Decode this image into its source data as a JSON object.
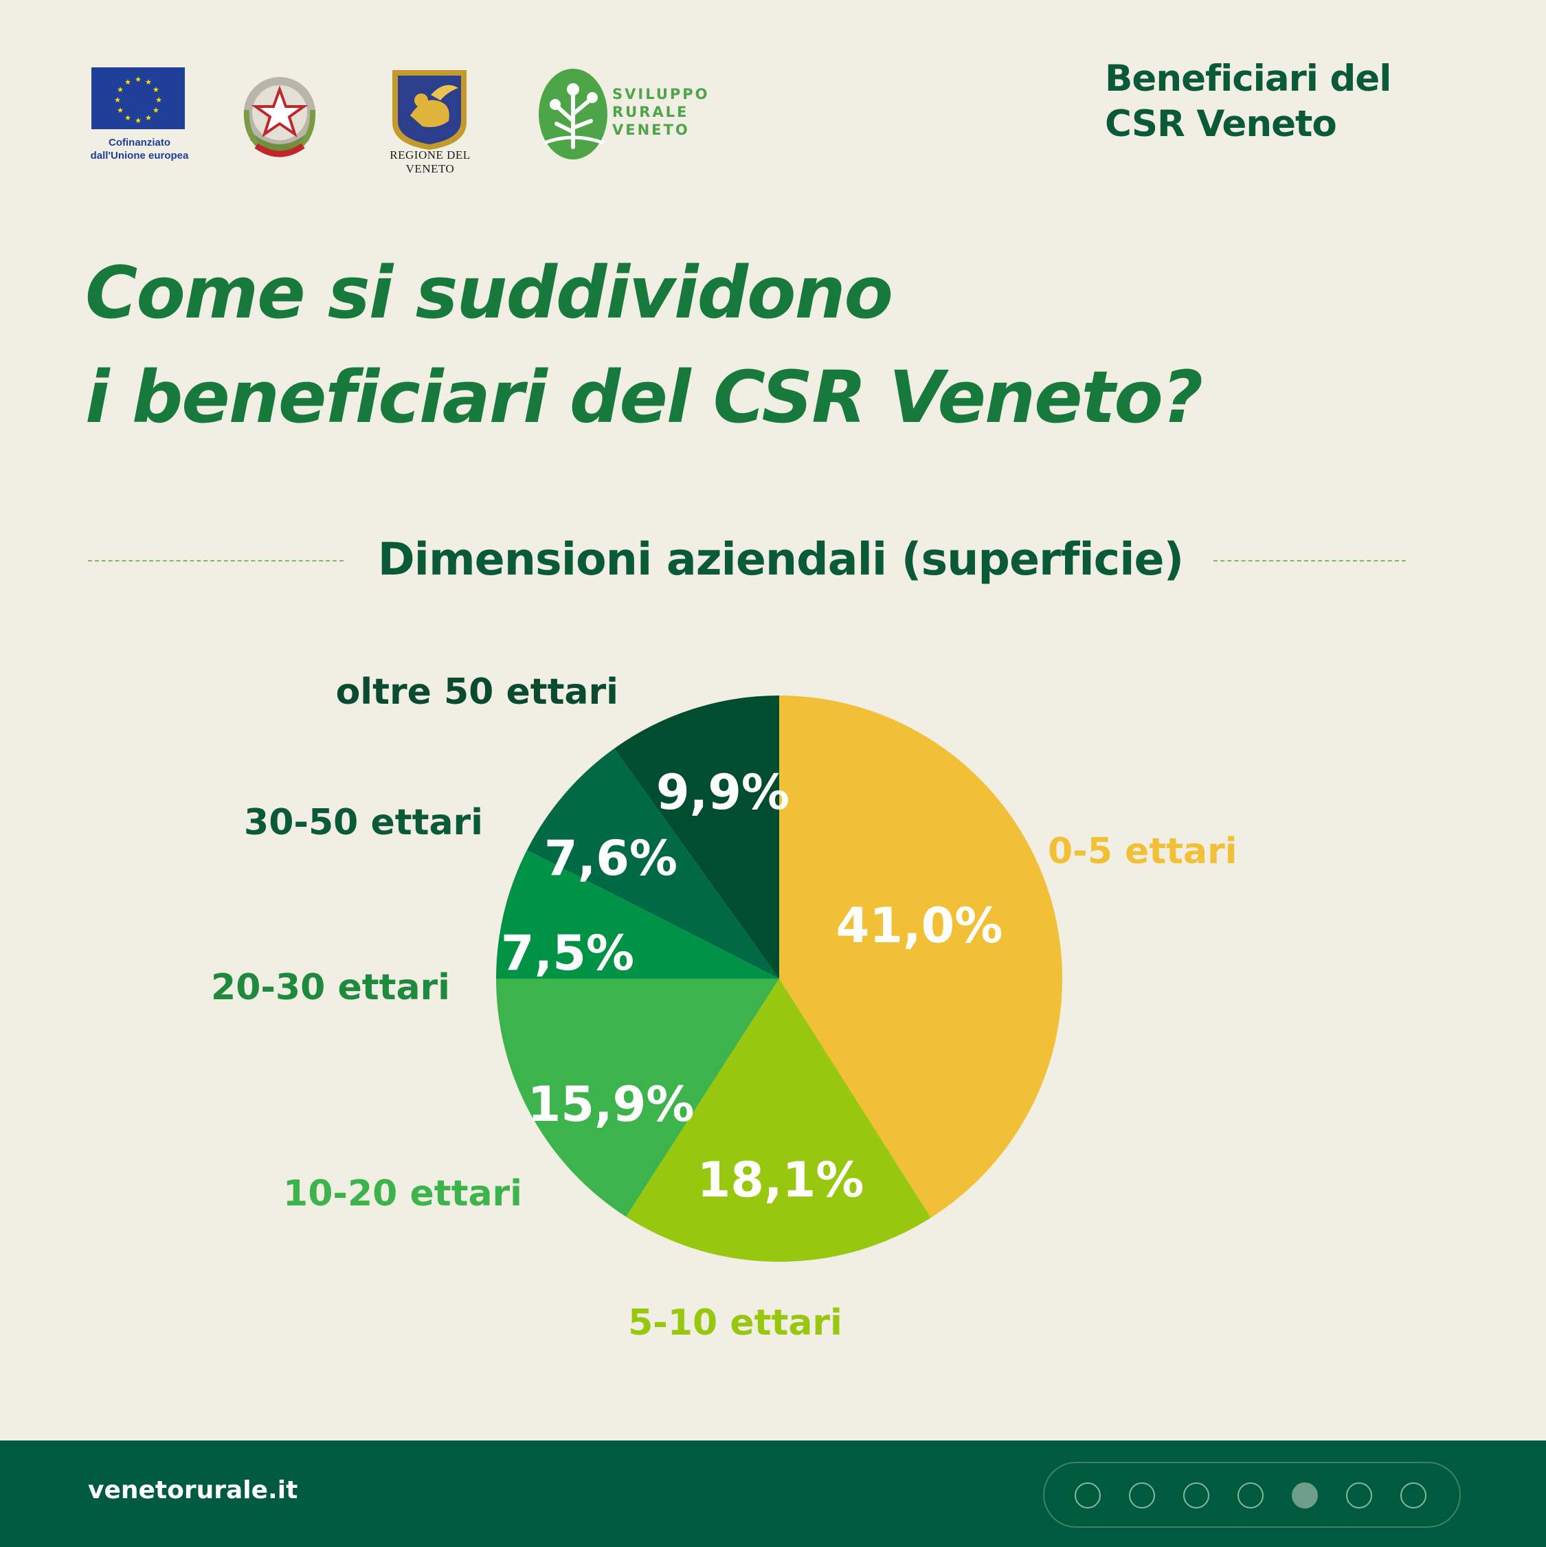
{
  "logos": {
    "eu_caption": "Cofinanziato\ndall'Unione europea",
    "veneto_caption": "REGIONE DEL VENETO",
    "svr_name": "SVILUPPO\nRURALE\nVENETO",
    "emblem_text": "REPVBBLICA ITALIANA"
  },
  "header": {
    "title": "Beneficiari del\nCSR Veneto"
  },
  "main": {
    "title": "Come si suddividono\ni beneficiari del CSR Veneto?"
  },
  "colors": {
    "background": "#f1eee4",
    "title_green": "#177a3c",
    "dark_green": "#0a5a3a",
    "footer": "#005a3e"
  },
  "chart_data": {
    "type": "pie",
    "title": "Dimensioni aziendali (superficie)",
    "start": "12 o'clock, clockwise",
    "slices": [
      {
        "label": "0-5 ettari",
        "value": 41.0,
        "value_label": "41,0%",
        "color": "#f2c037"
      },
      {
        "label": "5-10 ettari",
        "value": 18.1,
        "value_label": "18,1%",
        "color": "#97c70e"
      },
      {
        "label": "10-20 ettari",
        "value": 15.9,
        "value_label": "15,9%",
        "color": "#3cb44b"
      },
      {
        "label": "20-30 ettari",
        "value": 7.5,
        "value_label": "7,5%",
        "color": "#009245"
      },
      {
        "label": "30-50 ettari",
        "value": 7.6,
        "value_label": "7,6%",
        "color": "#006a45"
      },
      {
        "label": "oltre 50 ettari",
        "value": 9.9,
        "value_label": "9,9%",
        "color": "#004d30"
      }
    ],
    "label_colors": [
      "#f2c037",
      "#97c70e",
      "#3cb44b",
      "#1f8a3e",
      "#0a5a3a",
      "#0a4a30"
    ]
  },
  "footer": {
    "url": "venetorurale.it",
    "pager_total": 7,
    "pager_active": 5
  }
}
